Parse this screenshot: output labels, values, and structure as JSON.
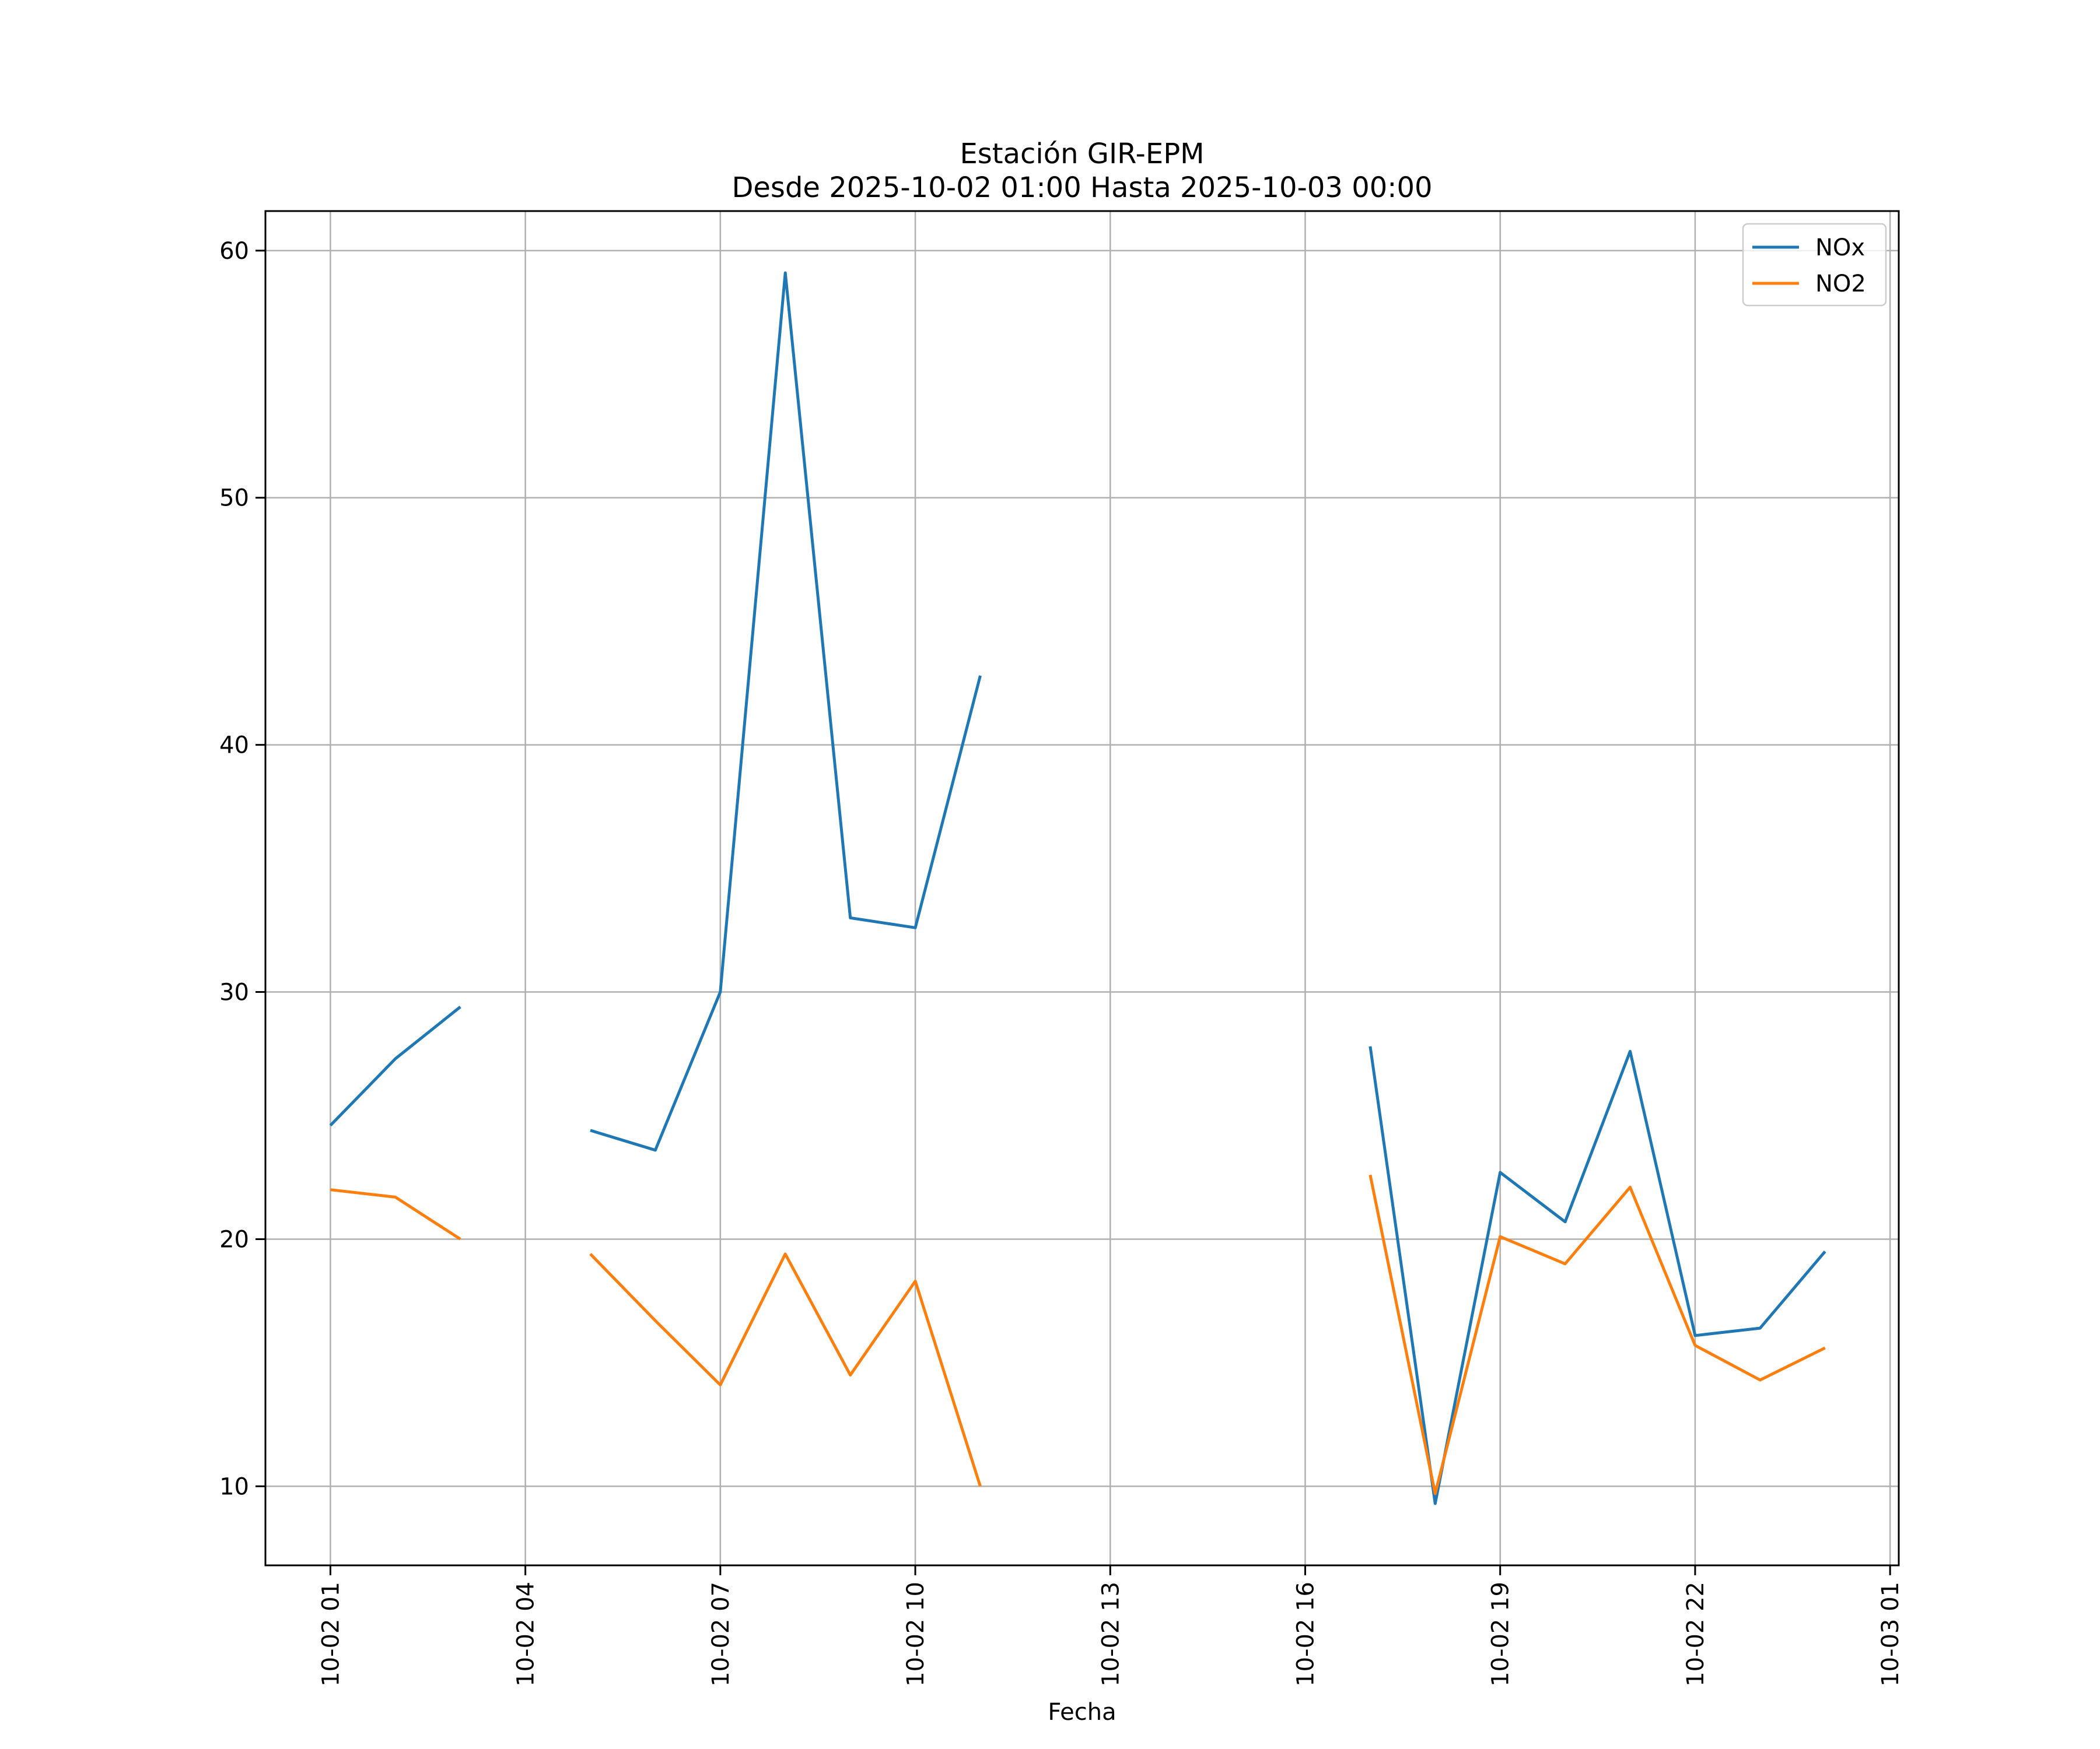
{
  "chart_data": {
    "type": "line",
    "title": "Estación GIR-EPM",
    "subtitle": "Desde 2025-10-02 01:00 Hasta 2025-10-03 00:00",
    "xlabel": "Fecha",
    "ylabel": "",
    "xlim": [
      "2025-10-02 00:00",
      "2025-10-03 01:08"
    ],
    "ylim": [
      6.8,
      61.6
    ],
    "x_ticks": [
      {
        "x": "2025-10-02 01:00",
        "label": "10-02 01"
      },
      {
        "x": "2025-10-02 04:00",
        "label": "10-02 04"
      },
      {
        "x": "2025-10-02 07:00",
        "label": "10-02 07"
      },
      {
        "x": "2025-10-02 10:00",
        "label": "10-02 10"
      },
      {
        "x": "2025-10-02 13:00",
        "label": "10-02 13"
      },
      {
        "x": "2025-10-02 16:00",
        "label": "10-02 16"
      },
      {
        "x": "2025-10-02 19:00",
        "label": "10-02 19"
      },
      {
        "x": "2025-10-02 22:00",
        "label": "10-02 22"
      },
      {
        "x": "2025-10-03 01:00",
        "label": "10-03 01"
      }
    ],
    "y_ticks": [
      10,
      20,
      30,
      40,
      50,
      60
    ],
    "grid": true,
    "legend_position": "top-right",
    "x": [
      "2025-10-02 01:00",
      "2025-10-02 02:00",
      "2025-10-02 03:00",
      "2025-10-02 04:00",
      "2025-10-02 05:00",
      "2025-10-02 06:00",
      "2025-10-02 07:00",
      "2025-10-02 08:00",
      "2025-10-02 09:00",
      "2025-10-02 10:00",
      "2025-10-02 11:00",
      "2025-10-02 12:00",
      "2025-10-02 13:00",
      "2025-10-02 14:00",
      "2025-10-02 15:00",
      "2025-10-02 16:00",
      "2025-10-02 17:00",
      "2025-10-02 18:00",
      "2025-10-02 19:00",
      "2025-10-02 20:00",
      "2025-10-02 21:00",
      "2025-10-02 22:00",
      "2025-10-02 23:00",
      "2025-10-03 00:00"
    ],
    "series": [
      {
        "name": "NOx",
        "color": "#1f77b4",
        "values": [
          24.6,
          27.3,
          29.4,
          null,
          24.4,
          23.6,
          30.0,
          59.1,
          33.0,
          32.6,
          42.8,
          null,
          null,
          null,
          null,
          null,
          27.8,
          9.3,
          22.7,
          20.7,
          27.6,
          16.1,
          16.4,
          19.5
        ]
      },
      {
        "name": "NO2",
        "color": "#ff7f0e",
        "values": [
          22.0,
          21.7,
          20.0,
          null,
          19.4,
          16.7,
          14.1,
          19.4,
          14.5,
          18.3,
          10.0,
          null,
          null,
          null,
          null,
          null,
          22.6,
          9.7,
          20.1,
          19.0,
          22.1,
          15.7,
          14.3,
          15.6
        ]
      }
    ]
  }
}
